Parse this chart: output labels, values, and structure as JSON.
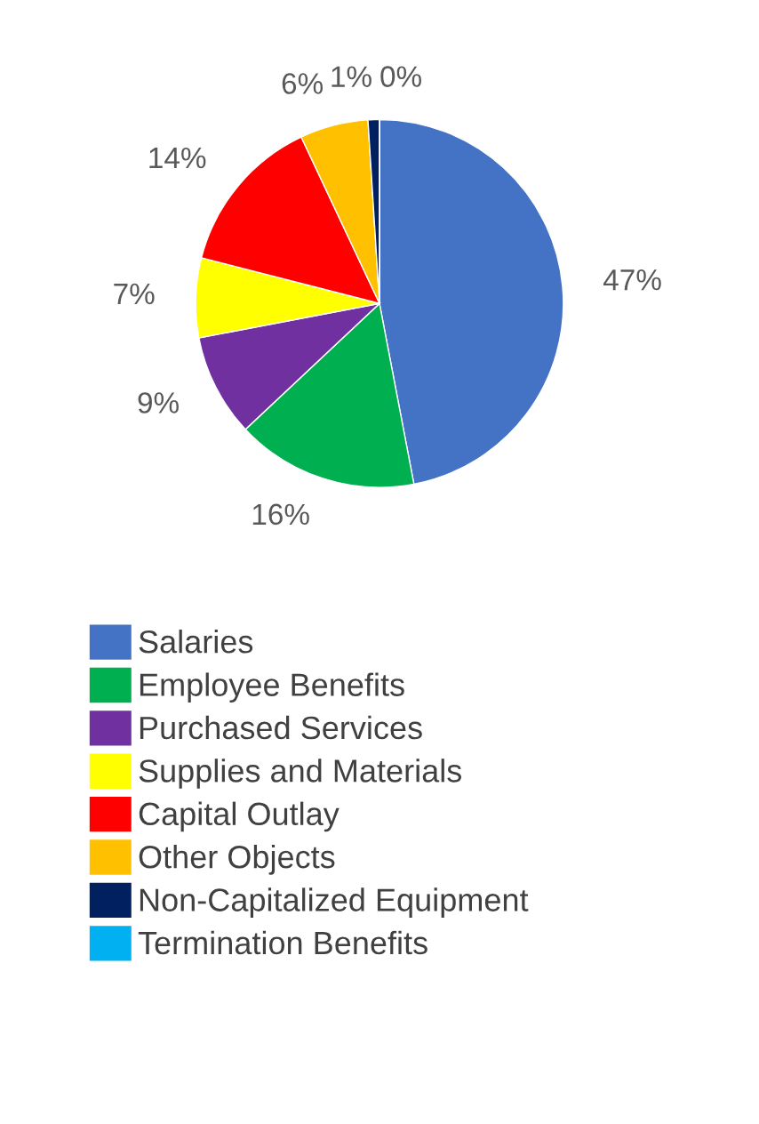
{
  "chart_data": {
    "type": "pie",
    "categories": [
      "Salaries",
      "Employee Benefits",
      "Purchased Services",
      "Supplies and Materials",
      "Capital Outlay",
      "Other Objects",
      "Non-Capitalized Equipment",
      "Termination Benefits"
    ],
    "values": [
      47,
      16,
      9,
      7,
      14,
      6,
      1,
      0
    ],
    "value_labels": [
      "47%",
      "16%",
      "9%",
      "7%",
      "14%",
      "6%",
      "1%",
      "0%"
    ],
    "colors": [
      "#4472c4",
      "#00b050",
      "#7030a0",
      "#ffff00",
      "#ff0000",
      "#ffc000",
      "#002060",
      "#00b0f0"
    ],
    "legend": "bottom"
  }
}
